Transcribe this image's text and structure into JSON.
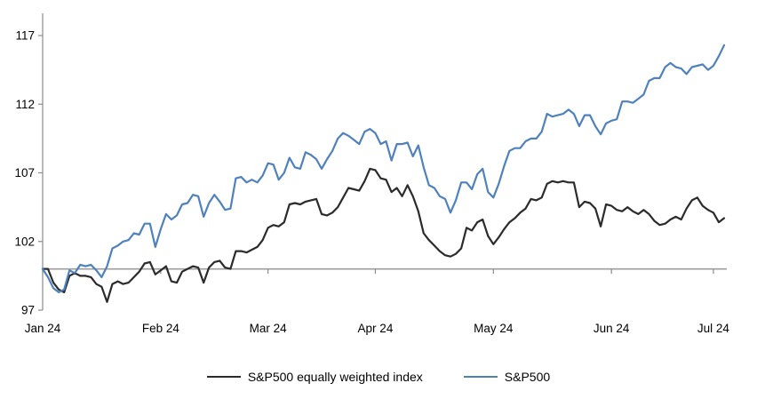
{
  "chart_data": {
    "type": "line",
    "title": "",
    "xlabel": "",
    "ylabel": "",
    "grid": false,
    "legend_position": "bottom-center",
    "y_ticks": [
      97,
      102,
      107,
      112,
      117
    ],
    "ylim": [
      97,
      118.7
    ],
    "baseline_value": 100,
    "x_tick_labels": [
      "Jan 24",
      "Feb 24",
      "Mar 24",
      "Apr 24",
      "May 24",
      "Jun 24",
      "Jul 24"
    ],
    "x_tick_indices": [
      0,
      22,
      42,
      62,
      84,
      106,
      125
    ],
    "axis_color": "#8c8c8c",
    "baseline_color": "#9d9d9d",
    "series": [
      {
        "name": "S&P500 equally weighted index",
        "color": "#2b2b2b",
        "values": [
          100.0,
          100.0,
          99.0,
          98.5,
          98.3,
          99.5,
          99.7,
          99.5,
          99.5,
          99.4,
          98.9,
          98.7,
          97.6,
          98.9,
          99.1,
          98.9,
          99.0,
          99.4,
          99.8,
          100.4,
          100.5,
          99.6,
          99.9,
          100.2,
          99.1,
          99.0,
          99.8,
          100.0,
          100.2,
          100.1,
          99.0,
          100.1,
          100.5,
          100.6,
          100.1,
          100.0,
          101.3,
          101.3,
          101.2,
          101.4,
          101.6,
          102.1,
          103.0,
          103.2,
          103.1,
          103.4,
          104.7,
          104.8,
          104.7,
          104.9,
          105.0,
          105.1,
          104.0,
          103.9,
          104.1,
          104.5,
          105.2,
          105.9,
          105.8,
          105.7,
          106.4,
          107.3,
          107.2,
          106.6,
          106.5,
          105.6,
          105.9,
          105.3,
          106.1,
          105.3,
          104.2,
          102.6,
          102.1,
          101.7,
          101.3,
          101.0,
          100.9,
          101.1,
          101.5,
          103.0,
          102.8,
          103.4,
          103.6,
          102.4,
          101.8,
          102.3,
          102.9,
          103.4,
          103.7,
          104.1,
          104.4,
          105.1,
          105.0,
          105.2,
          106.2,
          106.4,
          106.3,
          106.4,
          106.3,
          106.3,
          104.5,
          104.9,
          104.8,
          104.4,
          103.1,
          104.7,
          104.6,
          104.3,
          104.2,
          104.5,
          104.2,
          104.0,
          104.3,
          104.0,
          103.5,
          103.2,
          103.3,
          103.6,
          103.8,
          103.6,
          104.4,
          105.0,
          105.2,
          104.6,
          104.3,
          104.1,
          103.4,
          103.7
        ]
      },
      {
        "name": "S&P500",
        "color": "#4f81bd",
        "values": [
          100.0,
          99.4,
          98.6,
          98.3,
          98.5,
          99.9,
          99.7,
          100.3,
          100.2,
          100.3,
          99.9,
          99.4,
          100.2,
          101.5,
          101.7,
          102.0,
          102.1,
          102.6,
          102.5,
          103.3,
          103.3,
          101.6,
          102.9,
          104.0,
          103.6,
          103.9,
          104.7,
          104.8,
          105.4,
          105.3,
          103.8,
          104.8,
          105.4,
          104.9,
          104.3,
          104.4,
          106.6,
          106.7,
          106.3,
          106.5,
          106.3,
          106.8,
          107.7,
          107.6,
          106.5,
          107.0,
          108.1,
          107.4,
          107.3,
          108.5,
          108.3,
          108.0,
          107.3,
          108.0,
          108.6,
          109.5,
          109.9,
          109.7,
          109.4,
          109.1,
          110.0,
          110.2,
          109.9,
          109.1,
          109.3,
          107.9,
          109.1,
          109.1,
          109.2,
          108.2,
          109.0,
          107.4,
          106.1,
          105.9,
          105.3,
          105.1,
          104.1,
          105.0,
          106.3,
          106.3,
          105.8,
          106.9,
          107.3,
          105.6,
          105.2,
          106.2,
          107.5,
          108.6,
          108.8,
          108.8,
          109.3,
          109.5,
          109.5,
          110.0,
          111.3,
          111.1,
          111.2,
          111.3,
          111.6,
          111.3,
          110.4,
          111.2,
          111.2,
          110.4,
          109.8,
          110.6,
          110.8,
          110.9,
          112.2,
          112.2,
          112.1,
          112.4,
          112.7,
          113.7,
          113.9,
          113.9,
          114.7,
          115.0,
          114.7,
          114.6,
          114.2,
          114.7,
          114.8,
          114.9,
          114.5,
          114.8,
          115.5,
          116.3
        ]
      }
    ]
  }
}
